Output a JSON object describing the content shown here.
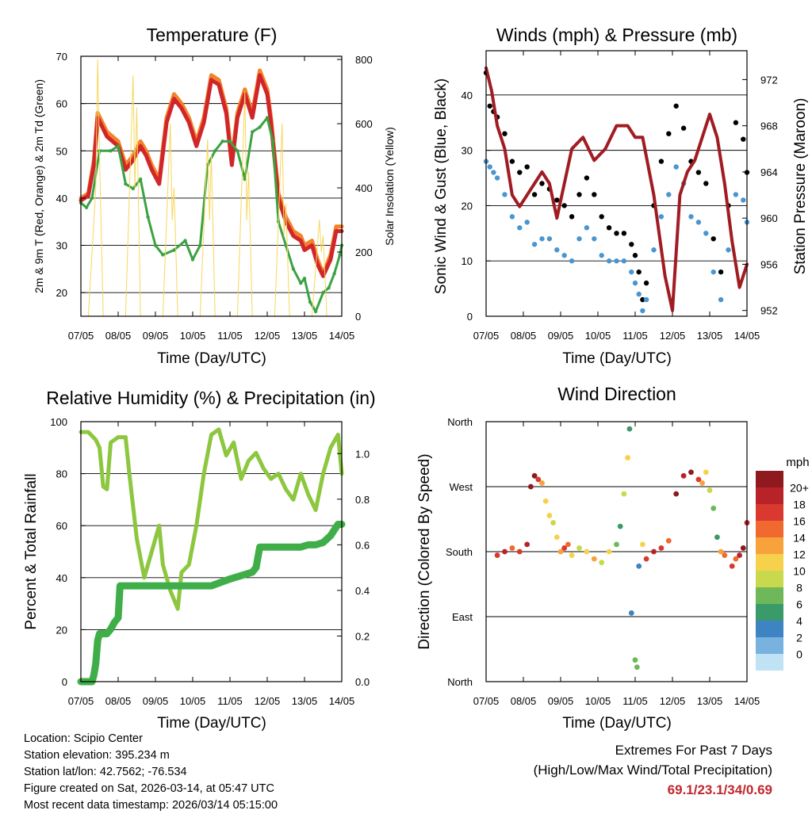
{
  "chart_data": [
    {
      "id": "temperature",
      "type": "line",
      "title": "Temperature (F)",
      "xlabel": "Time (Day/UTC)",
      "ylabel": "2m & 9m T (Red, Orange) & 2m Td (Green)",
      "y2label": "Solar Insolation (Yellow)",
      "x_ticks": [
        "07/05",
        "08/05",
        "09/05",
        "10/05",
        "11/05",
        "12/05",
        "13/05",
        "14/05"
      ],
      "xlim": [
        0,
        7
      ],
      "ylim": [
        15,
        70
      ],
      "y_ticks": [
        20,
        30,
        40,
        50,
        60,
        70
      ],
      "y2lim": [
        0,
        810
      ],
      "y2_ticks": [
        0,
        200,
        400,
        600,
        800
      ],
      "grid": [
        20,
        30,
        40,
        50,
        60
      ],
      "series": [
        {
          "name": "9m T",
          "color": "#f4822a",
          "axis": "left",
          "x": [
            0,
            0.2,
            0.35,
            0.45,
            0.7,
            1.0,
            1.2,
            1.4,
            1.6,
            1.75,
            1.9,
            2.1,
            2.3,
            2.5,
            2.7,
            2.9,
            3.1,
            3.3,
            3.5,
            3.7,
            3.9,
            4.05,
            4.2,
            4.4,
            4.6,
            4.8,
            5.0,
            5.1,
            5.3,
            5.5,
            5.7,
            5.9,
            6.0,
            6.2,
            6.35,
            6.5,
            6.7,
            6.85,
            7.0
          ],
          "y": [
            40,
            41,
            48,
            58,
            54,
            52,
            47,
            49,
            52,
            50,
            47,
            44,
            57,
            62,
            60,
            57,
            52,
            57,
            66,
            65,
            59,
            48,
            58,
            63,
            58,
            67,
            63,
            57,
            41,
            36,
            33,
            32,
            30,
            31,
            27,
            24,
            28,
            34,
            34
          ]
        },
        {
          "name": "2m T",
          "color": "#d0262a",
          "axis": "left",
          "x": [
            0,
            0.2,
            0.35,
            0.45,
            0.7,
            1.0,
            1.2,
            1.4,
            1.6,
            1.75,
            1.9,
            2.1,
            2.3,
            2.5,
            2.7,
            2.9,
            3.1,
            3.3,
            3.5,
            3.7,
            3.9,
            4.05,
            4.2,
            4.4,
            4.6,
            4.8,
            5.0,
            5.1,
            5.3,
            5.5,
            5.7,
            5.9,
            6.0,
            6.2,
            6.35,
            6.5,
            6.7,
            6.85,
            7.0
          ],
          "y": [
            39.5,
            40.5,
            47,
            57,
            53,
            51,
            46,
            48,
            51,
            49,
            46,
            43,
            56,
            61,
            59,
            56,
            51,
            56,
            65,
            64,
            58,
            47,
            57,
            62,
            57,
            66,
            62,
            56,
            40,
            35,
            32,
            31,
            29,
            30,
            26,
            23.5,
            27,
            33,
            33
          ]
        },
        {
          "name": "2m Td",
          "color": "#3aa341",
          "axis": "left",
          "x": [
            0,
            0.15,
            0.3,
            0.5,
            0.8,
            1.0,
            1.2,
            1.4,
            1.6,
            1.8,
            2.0,
            2.2,
            2.5,
            2.8,
            3.0,
            3.2,
            3.4,
            3.6,
            3.8,
            4.0,
            4.2,
            4.4,
            4.6,
            4.8,
            5.0,
            5.15,
            5.3,
            5.5,
            5.7,
            5.9,
            6.0,
            6.15,
            6.3,
            6.5,
            6.65,
            6.8,
            6.95,
            7.0
          ],
          "y": [
            39,
            38,
            40,
            50,
            50,
            51,
            43,
            42,
            44,
            36,
            30,
            28,
            29,
            31,
            27,
            30,
            47,
            50,
            52,
            52,
            50,
            44,
            54,
            55,
            57,
            52,
            35,
            30,
            25,
            22,
            23,
            18,
            16,
            20,
            21,
            24,
            28,
            30
          ]
        },
        {
          "name": "Solar Insolation",
          "color": "#f7d75a",
          "axis": "right",
          "x": [
            0,
            0.2,
            0.4,
            0.45,
            0.5,
            0.6,
            0.8,
            1.0,
            1.2,
            1.4,
            1.45,
            1.5,
            1.6,
            1.8,
            2.0,
            2.2,
            2.4,
            2.45,
            2.5,
            2.6,
            2.8,
            3.0,
            3.2,
            3.4,
            3.45,
            3.5,
            3.6,
            3.8,
            4.0,
            4.2,
            4.4,
            4.45,
            4.5,
            4.6,
            4.8,
            5.0,
            5.2,
            5.4,
            5.45,
            5.5,
            5.6,
            5.8,
            6.0,
            6.2,
            6.4,
            6.45,
            6.5,
            6.6,
            6.8,
            7.0
          ],
          "y": [
            0,
            0,
            400,
            800,
            500,
            0,
            0,
            0,
            0,
            750,
            400,
            650,
            0,
            0,
            0,
            0,
            600,
            300,
            400,
            0,
            0,
            0,
            0,
            550,
            300,
            500,
            0,
            0,
            0,
            0,
            700,
            300,
            450,
            0,
            0,
            0,
            0,
            600,
            250,
            350,
            0,
            0,
            0,
            0,
            300,
            200,
            250,
            0,
            0,
            0
          ]
        }
      ]
    },
    {
      "id": "winds",
      "type": "scatter",
      "title": "Winds (mph) & Pressure (mb)",
      "xlabel": "Time (Day/UTC)",
      "ylabel": "Sonic Wind & Gust (Blue, Black)",
      "y2label": "Station Pressure (Maroon)",
      "x_ticks": [
        "07/05",
        "08/05",
        "09/05",
        "10/05",
        "11/05",
        "12/05",
        "13/05",
        "14/05"
      ],
      "xlim": [
        0,
        7
      ],
      "ylim": [
        0,
        48
      ],
      "y_ticks": [
        0,
        10,
        20,
        30,
        40
      ],
      "y2lim": [
        951.5,
        974.5
      ],
      "y2_ticks": [
        952,
        956,
        960,
        964,
        968,
        972
      ],
      "grid": [
        10,
        20,
        30,
        40
      ],
      "series": [
        {
          "name": "Gust",
          "color": "#000000",
          "style": "points",
          "x": [
            0,
            0.1,
            0.2,
            0.3,
            0.5,
            0.7,
            0.9,
            1.1,
            1.3,
            1.5,
            1.7,
            1.9,
            2.1,
            2.3,
            2.5,
            2.7,
            2.9,
            3.1,
            3.3,
            3.5,
            3.7,
            3.9,
            4.0,
            4.1,
            4.2,
            4.3,
            4.5,
            4.7,
            4.9,
            5.1,
            5.3,
            5.5,
            5.7,
            5.9,
            6.1,
            6.3,
            6.5,
            6.7,
            6.9,
            7.0
          ],
          "y": [
            44,
            38,
            37,
            36,
            33,
            28,
            26,
            27,
            22,
            24,
            23,
            21,
            20,
            18,
            22,
            25,
            22,
            18,
            16,
            15,
            15,
            13,
            11,
            8,
            3,
            6,
            20,
            28,
            33,
            38,
            34,
            28,
            26,
            24,
            14,
            8,
            20,
            35,
            32,
            26
          ]
        },
        {
          "name": "Sonic Wind",
          "color": "#4b95cf",
          "style": "points",
          "x": [
            0,
            0.1,
            0.2,
            0.3,
            0.5,
            0.7,
            0.9,
            1.1,
            1.3,
            1.5,
            1.7,
            1.9,
            2.1,
            2.3,
            2.5,
            2.7,
            2.9,
            3.1,
            3.3,
            3.5,
            3.7,
            3.9,
            4.0,
            4.1,
            4.2,
            4.3,
            4.5,
            4.7,
            4.9,
            5.1,
            5.3,
            5.5,
            5.7,
            5.9,
            6.1,
            6.3,
            6.5,
            6.7,
            6.9,
            7.0
          ],
          "y": [
            28,
            27,
            26,
            25,
            22,
            18,
            16,
            17,
            13,
            14,
            14,
            12,
            11,
            10,
            14,
            16,
            14,
            11,
            10,
            10,
            10,
            8,
            6,
            4,
            1,
            3,
            12,
            18,
            22,
            27,
            24,
            18,
            17,
            15,
            8,
            3,
            12,
            22,
            21,
            17
          ]
        },
        {
          "name": "Station Pressure",
          "color": "#a01c22",
          "style": "line",
          "x": [
            0,
            0.15,
            0.3,
            0.5,
            0.7,
            0.9,
            1.1,
            1.3,
            1.5,
            1.7,
            1.9,
            2.1,
            2.3,
            2.6,
            2.9,
            3.2,
            3.5,
            3.8,
            4.0,
            4.2,
            4.5,
            4.8,
            5.0,
            5.2,
            5.4,
            5.6,
            5.8,
            6.0,
            6.2,
            6.4,
            6.6,
            6.8,
            6.9,
            7.0
          ],
          "y": [
            973,
            971,
            968,
            966,
            962,
            961,
            962,
            963,
            964,
            963,
            960,
            963,
            966,
            967,
            965,
            966,
            968,
            968,
            967,
            967,
            962,
            955,
            952,
            962,
            964,
            965,
            967,
            969,
            967,
            963,
            958,
            954,
            955,
            956
          ]
        }
      ]
    },
    {
      "id": "humidity",
      "type": "line",
      "title": "Relative Humidity (%) & Precipitation (in)",
      "xlabel": "Time (Day/UTC)",
      "ylabel": "Percent & Total Rainfall",
      "x_ticks": [
        "07/05",
        "08/05",
        "09/05",
        "10/05",
        "11/05",
        "12/05",
        "13/05",
        "14/05"
      ],
      "xlim": [
        0,
        7
      ],
      "ylim": [
        0,
        100
      ],
      "y_ticks": [
        0,
        20,
        40,
        60,
        80,
        100
      ],
      "y2lim": [
        0,
        1.14
      ],
      "y2_ticks": [
        "0.0",
        "0.2",
        "0.4",
        "0.6",
        "0.8",
        "1.0"
      ],
      "grid": [
        20,
        40,
        60,
        80
      ],
      "series": [
        {
          "name": "Relative Humidity",
          "color": "#8dc63f",
          "axis": "left",
          "x": [
            0,
            0.2,
            0.4,
            0.5,
            0.6,
            0.7,
            0.8,
            1.0,
            1.2,
            1.3,
            1.5,
            1.7,
            1.9,
            2.1,
            2.2,
            2.4,
            2.6,
            2.7,
            2.9,
            3.1,
            3.3,
            3.5,
            3.7,
            3.9,
            4.1,
            4.3,
            4.5,
            4.7,
            4.9,
            5.1,
            5.3,
            5.5,
            5.7,
            5.9,
            6.1,
            6.3,
            6.5,
            6.7,
            6.9,
            7.0
          ],
          "y": [
            96,
            96,
            93,
            90,
            75,
            74,
            92,
            94,
            94,
            80,
            55,
            40,
            50,
            60,
            45,
            35,
            28,
            42,
            45,
            60,
            80,
            95,
            97,
            87,
            92,
            78,
            85,
            88,
            82,
            78,
            80,
            74,
            70,
            80,
            72,
            66,
            80,
            90,
            95,
            80
          ]
        },
        {
          "name": "Total Rainfall",
          "color": "#3fae49",
          "axis": "right",
          "x": [
            0,
            0.3,
            0.35,
            0.4,
            0.45,
            0.5,
            0.7,
            0.8,
            0.9,
            1.0,
            1.05,
            1.1,
            1.3,
            1.5,
            1.7,
            2.0,
            2.5,
            3.0,
            3.5,
            4.0,
            4.2,
            4.4,
            4.6,
            4.7,
            4.8,
            5.0,
            5.3,
            5.6,
            5.9,
            6.1,
            6.3,
            6.5,
            6.7,
            6.9,
            7.0
          ],
          "y": [
            0,
            0,
            0.03,
            0.08,
            0.18,
            0.21,
            0.21,
            0.23,
            0.26,
            0.28,
            0.42,
            0.42,
            0.42,
            0.42,
            0.42,
            0.42,
            0.42,
            0.42,
            0.42,
            0.45,
            0.46,
            0.47,
            0.48,
            0.5,
            0.59,
            0.59,
            0.59,
            0.59,
            0.59,
            0.6,
            0.6,
            0.61,
            0.64,
            0.69,
            0.69
          ]
        }
      ]
    },
    {
      "id": "direction",
      "type": "scatter",
      "title": "Wind Direction",
      "xlabel": "Time (Day/UTC)",
      "ylabel": "Direction (Colored By Speed)",
      "x_ticks": [
        "07/05",
        "08/05",
        "09/05",
        "10/05",
        "11/05",
        "12/05",
        "13/05",
        "14/05"
      ],
      "xlim": [
        0,
        7
      ],
      "ylim": [
        0,
        360
      ],
      "y_ticks": [
        "North",
        "East",
        "South",
        "West",
        "North"
      ],
      "grid": [
        90,
        180,
        270
      ],
      "colorbar": {
        "title": "mph",
        "labels": [
          "20+",
          "18",
          "16",
          "14",
          "12",
          "10",
          "8",
          "6",
          "4",
          "2",
          "0"
        ],
        "colors": [
          "#8e1a1f",
          "#b8232a",
          "#d9392f",
          "#f06a2f",
          "#f7a23b",
          "#f6d24c",
          "#c8d94e",
          "#6fb85a",
          "#3a9a6a",
          "#3e83c2",
          "#77b3de",
          "#bfe2f5"
        ]
      },
      "points": {
        "x": [
          0.3,
          0.5,
          0.7,
          0.9,
          1.1,
          1.2,
          1.3,
          1.4,
          1.5,
          1.6,
          1.7,
          1.8,
          1.9,
          2.0,
          2.1,
          2.2,
          2.3,
          2.5,
          2.7,
          2.9,
          3.1,
          3.3,
          3.5,
          3.6,
          3.7,
          3.8,
          3.85,
          3.9,
          4.0,
          4.05,
          4.1,
          4.2,
          4.3,
          4.5,
          4.7,
          4.9,
          5.1,
          5.3,
          5.5,
          5.7,
          5.8,
          5.9,
          6.0,
          6.1,
          6.2,
          6.3,
          6.4,
          6.6,
          6.7,
          6.8,
          6.9,
          7.0
        ],
        "y": [
          175,
          180,
          185,
          180,
          190,
          270,
          285,
          280,
          275,
          250,
          230,
          220,
          200,
          180,
          185,
          190,
          175,
          185,
          180,
          170,
          165,
          180,
          190,
          215,
          260,
          310,
          350,
          95,
          30,
          20,
          160,
          190,
          170,
          180,
          185,
          195,
          260,
          285,
          290,
          280,
          275,
          290,
          265,
          240,
          200,
          180,
          175,
          160,
          170,
          175,
          185,
          220
        ],
        "s": [
          16,
          18,
          14,
          16,
          18,
          20,
          20,
          16,
          12,
          10,
          10,
          8,
          10,
          12,
          16,
          14,
          10,
          8,
          10,
          12,
          8,
          10,
          6,
          4,
          8,
          10,
          4,
          2,
          6,
          6,
          2,
          10,
          16,
          18,
          16,
          14,
          20,
          18,
          20,
          16,
          12,
          10,
          8,
          6,
          4,
          12,
          14,
          16,
          14,
          18,
          20,
          18
        ]
      }
    }
  ],
  "info": {
    "location": "Location: Scipio Center",
    "elevation": "Station elevation: 395.234 m",
    "latlon": "Station lat/lon: 42.7562; -76.534",
    "created": "Figure created on Sat, 2026-03-14, at 05:47 UTC",
    "latest": "Most recent data timestamp: 2026/03/14 05:15:00"
  },
  "extremes": {
    "title": "Extremes For Past 7 Days",
    "subtitle": "(High/Low/Max Wind/Total Precipitation)",
    "values": "69.1/23.1/34/0.69"
  }
}
